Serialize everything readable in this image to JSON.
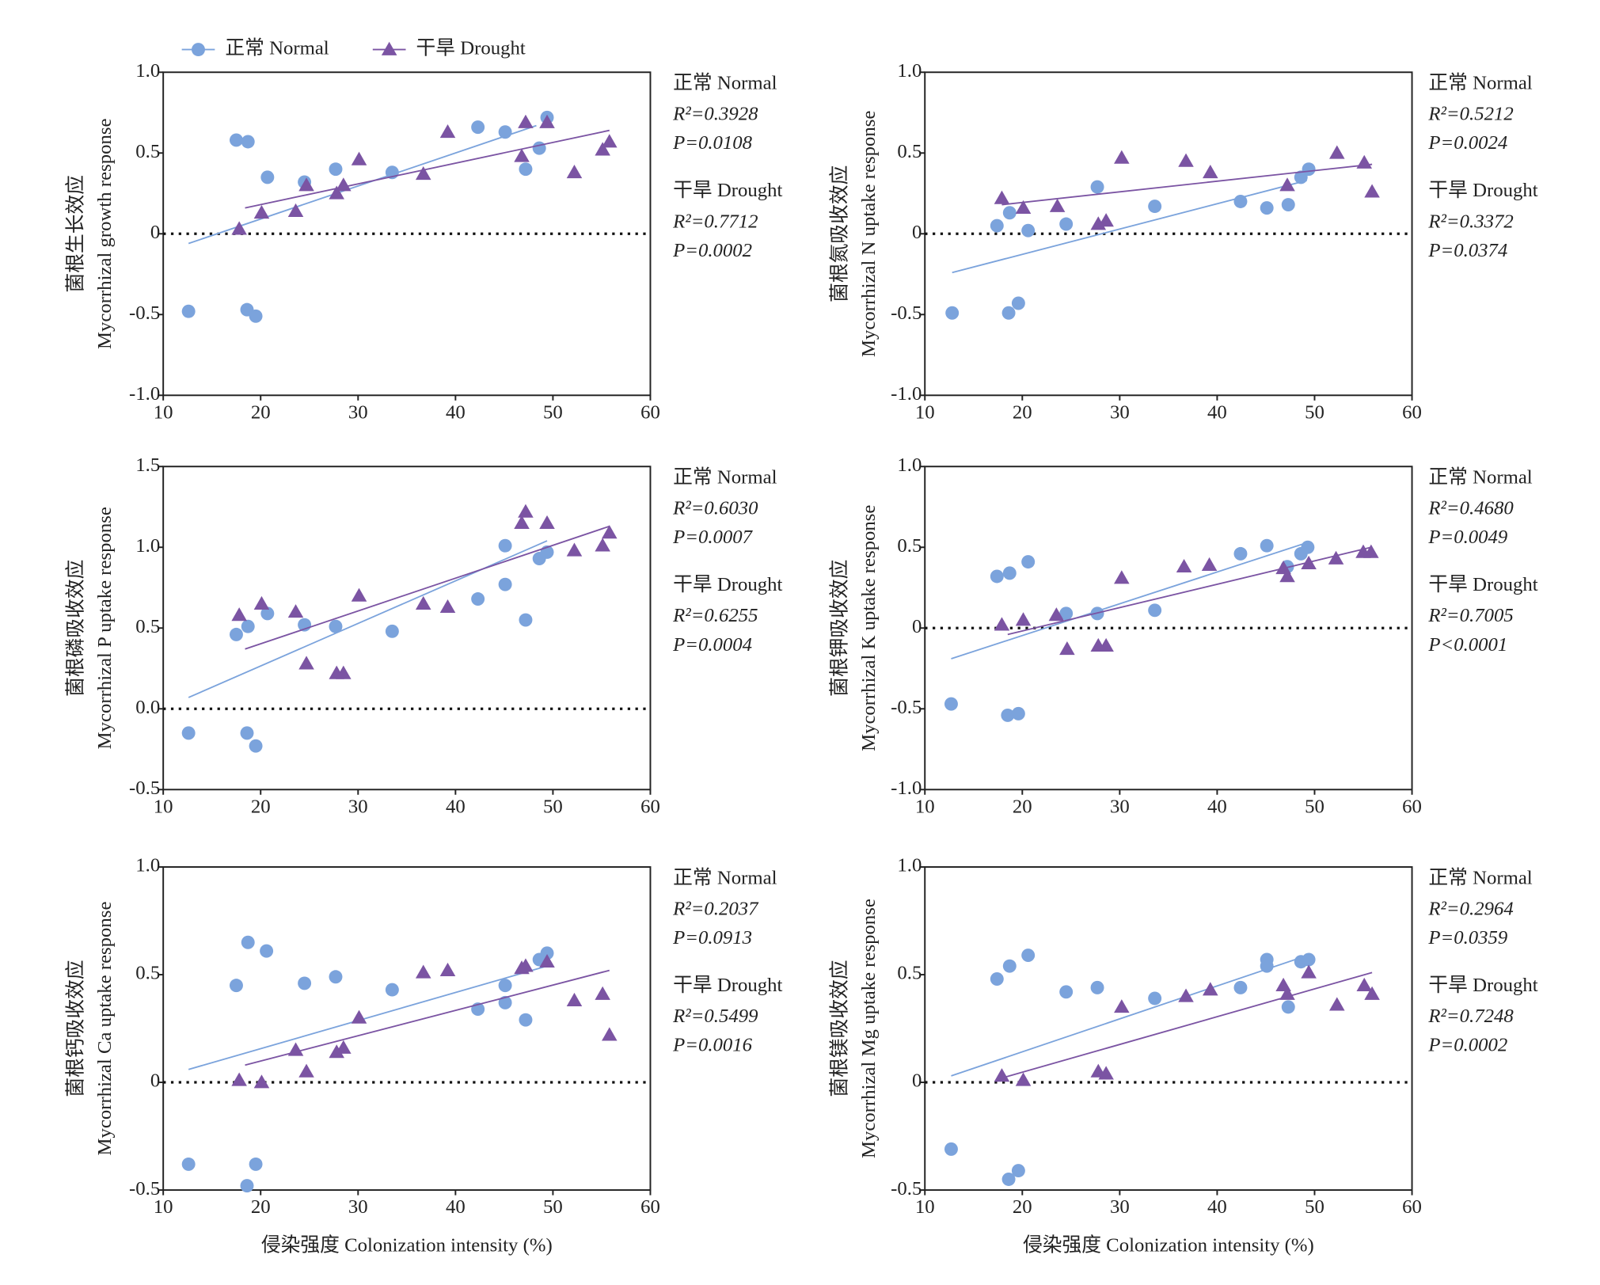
{
  "chart_data": [
    {
      "type": "scatter",
      "legend": "top",
      "ylabel": [
        "菌根生长效应",
        "Mycorrhizal growth response"
      ],
      "xlim": [
        10,
        60
      ],
      "xticks": [
        10,
        20,
        30,
        40,
        50,
        60
      ],
      "ylim": [
        -1,
        1
      ],
      "yticks": [
        {
          "value": -1,
          "label": "-1.0"
        },
        -0.5,
        0,
        0.5,
        {
          "value": 1,
          "label": "1.0"
        }
      ],
      "hline": 0,
      "series": [
        {
          "name": "正常 Normal",
          "color": "#7ba3dc",
          "marker": "circle",
          "x": [
            12.6,
            17.5,
            18.7,
            18.6,
            19.5,
            20.7,
            24.5,
            27.7,
            33.5,
            42.3,
            45.1,
            47.2,
            48.6,
            49.4
          ],
          "values": [
            -0.48,
            0.58,
            0.57,
            -0.47,
            -0.51,
            0.35,
            0.32,
            0.4,
            0.38,
            0.66,
            0.63,
            0.4,
            0.53,
            0.72
          ],
          "fit": {
            "x": [
              12.6,
              48.3
            ],
            "y": [
              -0.06,
              0.67
            ]
          },
          "r2": "R²=0.3928",
          "p": "P=0.0108"
        },
        {
          "name": "干旱 Drought",
          "color": "#7b54a3",
          "marker": "triangle",
          "x": [
            17.8,
            20.1,
            23.6,
            24.7,
            27.8,
            28.5,
            30.1,
            36.7,
            39.2,
            46.8,
            47.2,
            49.4,
            52.2,
            55.1,
            55.8
          ],
          "values": [
            0.03,
            0.13,
            0.14,
            0.3,
            0.25,
            0.3,
            0.46,
            0.37,
            0.63,
            0.48,
            0.69,
            0.69,
            0.38,
            0.52,
            0.57
          ],
          "fit": {
            "x": [
              18.4,
              55.8
            ],
            "y": [
              0.16,
              0.64
            ]
          },
          "r2": "R²=0.7712",
          "p": "P=0.0002"
        }
      ]
    },
    {
      "type": "scatter",
      "ylabel": [
        "菌根氮吸收效应",
        "Mycorrhizal N uptake response"
      ],
      "xlim": [
        10,
        60
      ],
      "xticks": [
        10,
        20,
        30,
        40,
        50,
        60
      ],
      "ylim": [
        -1,
        1
      ],
      "yticks": [
        {
          "value": -1,
          "label": "-1.0"
        },
        -0.5,
        0,
        0.5,
        {
          "value": 1,
          "label": "1.0"
        }
      ],
      "hline": 0,
      "series": [
        {
          "name": "正常 Normal",
          "color": "#7ba3dc",
          "marker": "circle",
          "x": [
            12.8,
            17.4,
            18.7,
            18.6,
            19.6,
            20.6,
            24.5,
            27.7,
            33.6,
            42.4,
            45.1,
            47.3,
            48.6,
            49.4
          ],
          "values": [
            -0.49,
            0.05,
            0.13,
            -0.49,
            -0.43,
            0.02,
            0.06,
            0.29,
            0.17,
            0.2,
            0.16,
            0.18,
            0.35,
            0.4
          ],
          "fit": {
            "x": [
              12.8,
              49.2
            ],
            "y": [
              -0.24,
              0.33
            ]
          },
          "r2": "R²=0.5212",
          "p": "P=0.0024"
        },
        {
          "name": "干旱 Drought",
          "color": "#7b54a3",
          "marker": "triangle",
          "x": [
            17.9,
            20.1,
            23.6,
            27.8,
            28.6,
            30.2,
            36.8,
            39.3,
            47.2,
            52.3,
            55.1,
            55.9
          ],
          "values": [
            0.22,
            0.16,
            0.17,
            0.06,
            0.08,
            0.47,
            0.45,
            0.38,
            0.3,
            0.5,
            0.44,
            0.26
          ],
          "fit": {
            "x": [
              17.9,
              55.9
            ],
            "y": [
              0.18,
              0.43
            ]
          },
          "r2": "R²=0.3372",
          "p": "P=0.0374"
        }
      ]
    },
    {
      "type": "scatter",
      "ylabel": [
        "菌根磷吸收效应",
        "Mycorrhizal P uptake response"
      ],
      "xlim": [
        10,
        60
      ],
      "xticks": [
        10,
        20,
        30,
        40,
        50,
        60
      ],
      "ylim": [
        -0.5,
        1.5
      ],
      "yticks": [
        -0.5,
        {
          "value": 0,
          "label": "0.0"
        },
        0.5,
        {
          "value": 1,
          "label": "1.0"
        },
        1.5
      ],
      "hline": 0,
      "series": [
        {
          "name": "正常 Normal",
          "color": "#7ba3dc",
          "marker": "circle",
          "x": [
            12.6,
            17.5,
            18.7,
            18.6,
            19.5,
            20.7,
            24.5,
            27.7,
            33.5,
            42.3,
            45.1,
            45.1,
            47.2,
            48.6,
            49.4
          ],
          "values": [
            -0.15,
            0.46,
            0.51,
            -0.15,
            -0.23,
            0.59,
            0.52,
            0.51,
            0.48,
            0.68,
            0.77,
            1.01,
            0.55,
            0.93,
            0.97
          ],
          "fit": {
            "x": [
              12.6,
              49.4
            ],
            "y": [
              0.07,
              1.04
            ]
          },
          "r2": "R²=0.6030",
          "p": "P=0.0007"
        },
        {
          "name": "干旱 Drought",
          "color": "#7b54a3",
          "marker": "triangle",
          "x": [
            17.8,
            20.1,
            23.6,
            24.7,
            27.8,
            28.5,
            30.1,
            36.7,
            39.2,
            46.8,
            47.2,
            49.4,
            52.2,
            55.1,
            55.8
          ],
          "values": [
            0.58,
            0.65,
            0.6,
            0.28,
            0.22,
            0.22,
            0.7,
            0.65,
            0.63,
            1.15,
            1.22,
            1.15,
            0.98,
            1.01,
            1.09
          ],
          "fit": {
            "x": [
              18.4,
              55.8
            ],
            "y": [
              0.37,
              1.13
            ]
          },
          "r2": "R²=0.6255",
          "p": "P=0.0004"
        }
      ]
    },
    {
      "type": "scatter",
      "ylabel": [
        "菌根钾吸收效应",
        "Mycorrhizal K uptake response"
      ],
      "xlim": [
        10,
        60
      ],
      "xticks": [
        10,
        20,
        30,
        40,
        50,
        60
      ],
      "ylim": [
        -1,
        1
      ],
      "yticks": [
        {
          "value": -1,
          "label": "-1.0"
        },
        -0.5,
        0,
        0.5,
        {
          "value": 1,
          "label": "1.0"
        }
      ],
      "hline": 0,
      "series": [
        {
          "name": "正常 Normal",
          "color": "#7ba3dc",
          "marker": "circle",
          "x": [
            12.7,
            17.4,
            18.7,
            18.5,
            19.6,
            20.6,
            24.5,
            27.7,
            33.6,
            42.4,
            45.1,
            47.2,
            48.6,
            49.3
          ],
          "values": [
            -0.47,
            0.32,
            0.34,
            -0.54,
            -0.53,
            0.41,
            0.09,
            0.09,
            0.11,
            0.46,
            0.51,
            0.38,
            0.46,
            0.5
          ],
          "fit": {
            "x": [
              12.7,
              49.3
            ],
            "y": [
              -0.19,
              0.53
            ]
          },
          "r2": "R²=0.4680",
          "p": "P=0.0049"
        },
        {
          "name": "干旱 Drought",
          "color": "#7b54a3",
          "marker": "triangle",
          "x": [
            17.9,
            20.1,
            23.5,
            24.6,
            27.8,
            28.6,
            30.2,
            36.6,
            39.2,
            46.8,
            47.2,
            49.4,
            52.2,
            55.0,
            55.8
          ],
          "values": [
            0.02,
            0.05,
            0.08,
            -0.13,
            -0.11,
            -0.11,
            0.31,
            0.38,
            0.39,
            0.37,
            0.32,
            0.4,
            0.43,
            0.47,
            0.47
          ],
          "fit": {
            "x": [
              18.5,
              55.8
            ],
            "y": [
              -0.04,
              0.5
            ]
          },
          "r2": "R²=0.7005",
          "p": "P<0.0001"
        }
      ]
    },
    {
      "type": "scatter",
      "ylabel": [
        "菌根钙吸收效应",
        "Mycorrhizal Ca uptake response"
      ],
      "xlabel": "侵染强度 Colonization intensity (%)",
      "xlim": [
        10,
        60
      ],
      "xticks": [
        10,
        20,
        30,
        40,
        50,
        60
      ],
      "ylim": [
        -0.5,
        1
      ],
      "yticks": [
        -0.5,
        0,
        0.5,
        {
          "value": 1,
          "label": "1.0"
        }
      ],
      "hline": 0,
      "series": [
        {
          "name": "正常 Normal",
          "color": "#7ba3dc",
          "marker": "circle",
          "x": [
            12.6,
            17.5,
            18.7,
            18.6,
            19.5,
            20.6,
            24.5,
            27.7,
            33.5,
            42.3,
            45.1,
            45.1,
            47.2,
            48.6,
            49.4
          ],
          "values": [
            -0.38,
            0.45,
            0.65,
            -0.48,
            -0.38,
            0.61,
            0.46,
            0.49,
            0.43,
            0.34,
            0.45,
            0.37,
            0.29,
            0.57,
            0.6
          ],
          "fit": {
            "x": [
              12.6,
              49.4
            ],
            "y": [
              0.06,
              0.54
            ]
          },
          "r2": "R²=0.2037",
          "p": "P=0.0913"
        },
        {
          "name": "干旱 Drought",
          "color": "#7b54a3",
          "marker": "triangle",
          "x": [
            17.8,
            20.1,
            23.6,
            24.7,
            27.8,
            28.5,
            30.1,
            36.7,
            39.2,
            46.8,
            47.2,
            49.4,
            52.2,
            55.1,
            55.8
          ],
          "values": [
            0.01,
            0.0,
            0.15,
            0.05,
            0.14,
            0.16,
            0.3,
            0.51,
            0.52,
            0.53,
            0.54,
            0.56,
            0.38,
            0.41,
            0.22
          ],
          "fit": {
            "x": [
              18.4,
              55.8
            ],
            "y": [
              0.08,
              0.52
            ]
          },
          "r2": "R²=0.5499",
          "p": "P=0.0016"
        }
      ]
    },
    {
      "type": "scatter",
      "ylabel": [
        "菌根镁吸收效应",
        "Mycorrhizal Mg uptake response"
      ],
      "xlabel": "侵染强度 Colonization intensity (%)",
      "xlim": [
        10,
        60
      ],
      "xticks": [
        10,
        20,
        30,
        40,
        50,
        60
      ],
      "ylim": [
        -0.5,
        1
      ],
      "yticks": [
        -0.5,
        0,
        0.5,
        {
          "value": 1,
          "label": "1.0"
        }
      ],
      "hline": 0,
      "series": [
        {
          "name": "正常 Normal",
          "color": "#7ba3dc",
          "marker": "circle",
          "x": [
            12.7,
            17.4,
            18.7,
            18.6,
            19.6,
            20.6,
            24.5,
            27.7,
            33.6,
            42.4,
            45.1,
            45.1,
            47.3,
            48.6,
            49.4
          ],
          "values": [
            -0.31,
            0.48,
            0.54,
            -0.45,
            -0.41,
            0.59,
            0.42,
            0.44,
            0.39,
            0.44,
            0.57,
            0.54,
            0.35,
            0.56,
            0.57
          ],
          "fit": {
            "x": [
              12.7,
              49.3
            ],
            "y": [
              0.03,
              0.59
            ]
          },
          "r2": "R²=0.2964",
          "p": "P=0.0359"
        },
        {
          "name": "干旱 Drought",
          "color": "#7b54a3",
          "marker": "triangle",
          "x": [
            17.9,
            20.1,
            27.8,
            28.6,
            30.2,
            36.8,
            39.3,
            46.8,
            47.2,
            49.4,
            52.3,
            55.1,
            55.9
          ],
          "values": [
            0.03,
            0.01,
            0.05,
            0.04,
            0.35,
            0.4,
            0.43,
            0.45,
            0.41,
            0.51,
            0.36,
            0.45,
            0.41
          ],
          "fit": {
            "x": [
              17.9,
              55.9
            ],
            "y": [
              0.02,
              0.51
            ]
          },
          "r2": "R²=0.7248",
          "p": "P=0.0002"
        }
      ]
    }
  ]
}
